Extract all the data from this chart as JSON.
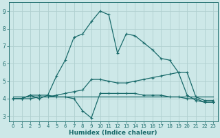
{
  "bg_color": "#cde8e8",
  "grid_color": "#b0d0d0",
  "line_color": "#1a6b6b",
  "series1_x": [
    0,
    1,
    2,
    3,
    4,
    5,
    6,
    7,
    8,
    9,
    10,
    11,
    12,
    13,
    14,
    15,
    16,
    17,
    18,
    19,
    20,
    21,
    22,
    23
  ],
  "series1_y": [
    4.0,
    4.0,
    4.2,
    4.2,
    4.2,
    5.3,
    6.2,
    7.5,
    7.7,
    8.4,
    9.0,
    8.8,
    6.6,
    7.7,
    7.6,
    7.2,
    6.8,
    6.3,
    6.2,
    5.5,
    4.2,
    3.9,
    3.8,
    3.8
  ],
  "series2_x": [
    0,
    1,
    2,
    3,
    4,
    5,
    6,
    7,
    8,
    9,
    10,
    11,
    12,
    13,
    14,
    15,
    16,
    17,
    18,
    19,
    20,
    21,
    22,
    23
  ],
  "series2_y": [
    4.0,
    4.0,
    4.0,
    4.1,
    4.1,
    4.2,
    4.3,
    4.4,
    4.5,
    5.1,
    5.1,
    5.0,
    4.9,
    4.9,
    5.0,
    5.1,
    5.2,
    5.3,
    5.4,
    5.5,
    5.5,
    4.1,
    3.9,
    3.9
  ],
  "series3_x": [
    0,
    1,
    2,
    3,
    4,
    5,
    6,
    7,
    8,
    9,
    10,
    11,
    12,
    13,
    14,
    15,
    16,
    17,
    18,
    19,
    20,
    21,
    22,
    23
  ],
  "series3_y": [
    4.1,
    4.1,
    4.1,
    4.1,
    4.1,
    4.1,
    4.1,
    4.1,
    4.1,
    4.1,
    4.1,
    4.1,
    4.1,
    4.1,
    4.1,
    4.1,
    4.1,
    4.1,
    4.1,
    4.1,
    4.1,
    4.1,
    4.1,
    4.1
  ],
  "series4_x": [
    0,
    1,
    2,
    3,
    4,
    5,
    6,
    7,
    8,
    9,
    10,
    11,
    12,
    13,
    14,
    15,
    16,
    17,
    18,
    19,
    20,
    21,
    22,
    23
  ],
  "series4_y": [
    4.0,
    4.0,
    4.2,
    4.0,
    4.2,
    4.1,
    4.1,
    4.0,
    3.3,
    2.9,
    4.3,
    4.3,
    4.3,
    4.3,
    4.3,
    4.2,
    4.2,
    4.2,
    4.1,
    4.1,
    4.0,
    4.0,
    3.8,
    3.8
  ],
  "xlabel": "Humidex (Indice chaleur)",
  "xlim": [
    -0.5,
    23.5
  ],
  "ylim": [
    2.7,
    9.5
  ],
  "yticks": [
    3,
    4,
    5,
    6,
    7,
    8,
    9
  ],
  "xticks": [
    0,
    1,
    2,
    3,
    4,
    5,
    6,
    7,
    8,
    9,
    10,
    11,
    12,
    13,
    14,
    15,
    16,
    17,
    18,
    19,
    20,
    21,
    22,
    23
  ]
}
